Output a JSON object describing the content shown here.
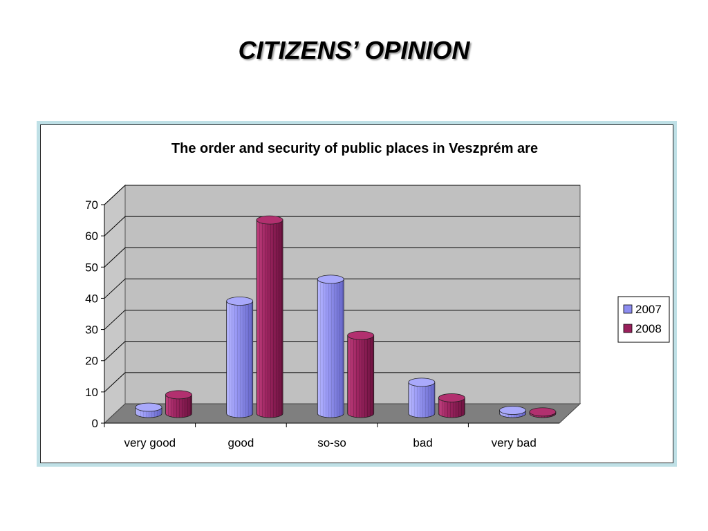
{
  "slide": {
    "title": "CITIZENS’ OPINION"
  },
  "colors": {
    "series_2007": "#8d8df0",
    "series_2008": "#99205c",
    "wall": "#c0c0c0",
    "floor": "#7f7f7f",
    "frame": "#bfe0e6"
  },
  "chart_data": {
    "type": "bar",
    "style": "3d-cylinder",
    "title": "The order and security of public places in Veszprém are",
    "categories": [
      "very good",
      "good",
      "so-so",
      "bad",
      "very bad"
    ],
    "series": [
      {
        "name": "2007",
        "values": [
          2,
          36,
          43,
          10,
          1
        ]
      },
      {
        "name": "2008",
        "values": [
          6,
          62,
          25,
          5,
          0.5
        ]
      }
    ],
    "yticks": [
      "0",
      "10",
      "20",
      "30",
      "40",
      "50",
      "60",
      "70"
    ],
    "ylim": [
      0,
      70
    ],
    "xlabel": "",
    "ylabel": "",
    "grid": true,
    "legend_position": "right"
  }
}
